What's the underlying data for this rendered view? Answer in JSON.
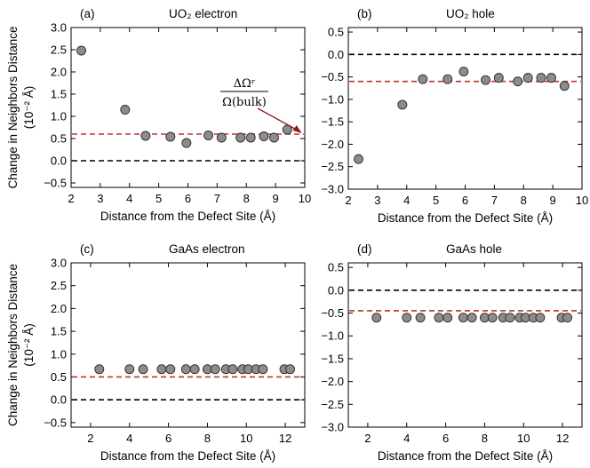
{
  "chart_data": [
    {
      "type": "scatter",
      "title_letter": "(a)",
      "title": "UO₂ electron",
      "xlabel": "Distance from the Defect Site (Å)",
      "ylabel": "Change in Neighbors Distance",
      "ylabel_unit": "(10⁻² Å)",
      "xlim": [
        2,
        10
      ],
      "ylim": [
        -0.6,
        3.0
      ],
      "xticks": [
        2,
        3,
        4,
        5,
        6,
        7,
        8,
        9,
        10
      ],
      "yticks": [
        -0.5,
        0.0,
        0.5,
        1.0,
        1.5,
        2.0,
        2.5,
        3.0
      ],
      "ytick_labels": [
        "−0.5",
        "0.0",
        "0.5",
        "1.0",
        "1.5",
        "2.0",
        "2.5",
        "3.0"
      ],
      "zero_line": 0.0,
      "reference_line": 0.6,
      "annotation": {
        "numerator": "ΔΩʳ",
        "denominator": "Ω(bulk)"
      },
      "points": {
        "x": [
          2.35,
          3.85,
          4.55,
          5.4,
          5.95,
          6.7,
          7.15,
          7.8,
          8.15,
          8.6,
          8.95,
          9.4
        ],
        "y": [
          2.48,
          1.15,
          0.56,
          0.54,
          0.4,
          0.57,
          0.52,
          0.52,
          0.52,
          0.55,
          0.52,
          0.7
        ]
      }
    },
    {
      "type": "scatter",
      "title_letter": "(b)",
      "title": "UO₂ hole",
      "xlabel": "Distance from the Defect Site (Å)",
      "ylabel": "",
      "xlim": [
        2,
        10
      ],
      "ylim": [
        -3.0,
        0.6
      ],
      "xticks": [
        2,
        3,
        4,
        5,
        6,
        7,
        8,
        9,
        10
      ],
      "yticks": [
        -3.0,
        -2.5,
        -2.0,
        -1.5,
        -1.0,
        -0.5,
        0.0,
        0.5
      ],
      "ytick_labels": [
        "−3.0",
        "−2.5",
        "−2.0",
        "−1.5",
        "−1.0",
        "−0.5",
        "0.0",
        "0.5"
      ],
      "zero_line": 0.0,
      "reference_line": -0.6,
      "points": {
        "x": [
          2.35,
          3.85,
          4.55,
          5.4,
          5.95,
          6.7,
          7.15,
          7.8,
          8.15,
          8.6,
          8.95,
          9.4
        ],
        "y": [
          -2.33,
          -1.12,
          -0.55,
          -0.55,
          -0.38,
          -0.57,
          -0.52,
          -0.6,
          -0.52,
          -0.52,
          -0.52,
          -0.7
        ]
      }
    },
    {
      "type": "scatter",
      "title_letter": "(c)",
      "title": "GaAs electron",
      "xlabel": "Distance from the Defect Site (Å)",
      "ylabel": "Change in Neighbors Distance",
      "ylabel_unit": "(10⁻² Å)",
      "xlim": [
        1,
        13
      ],
      "ylim": [
        -0.6,
        3.0
      ],
      "xticks": [
        2,
        4,
        6,
        8,
        10,
        12
      ],
      "yticks": [
        -0.5,
        0.0,
        0.5,
        1.0,
        1.5,
        2.0,
        2.5,
        3.0
      ],
      "ytick_labels": [
        "−0.5",
        "0.0",
        "0.5",
        "1.0",
        "1.5",
        "2.0",
        "2.5",
        "3.0"
      ],
      "zero_line": 0.0,
      "reference_line": 0.5,
      "points": {
        "x": [
          2.45,
          4.0,
          4.7,
          5.65,
          6.1,
          6.9,
          7.35,
          8.0,
          8.4,
          8.95,
          9.3,
          9.8,
          10.1,
          10.5,
          10.85,
          11.95,
          12.25
        ],
        "y": [
          0.67,
          0.67,
          0.67,
          0.67,
          0.67,
          0.67,
          0.67,
          0.67,
          0.67,
          0.67,
          0.67,
          0.67,
          0.67,
          0.67,
          0.67,
          0.67,
          0.67
        ]
      }
    },
    {
      "type": "scatter",
      "title_letter": "(d)",
      "title": "GaAs hole",
      "xlabel": "Distance from the Defect Site (Å)",
      "ylabel": "",
      "xlim": [
        1,
        13
      ],
      "ylim": [
        -3.0,
        0.6
      ],
      "xticks": [
        2,
        4,
        6,
        8,
        10,
        12
      ],
      "yticks": [
        -3.0,
        -2.5,
        -2.0,
        -1.5,
        -1.0,
        -0.5,
        0.0,
        0.5
      ],
      "ytick_labels": [
        "−3.0",
        "−2.5",
        "−2.0",
        "−1.5",
        "−1.0",
        "−0.5",
        "0.0",
        "0.5"
      ],
      "zero_line": 0.0,
      "reference_line": -0.45,
      "points": {
        "x": [
          2.45,
          4.0,
          4.7,
          5.65,
          6.1,
          6.9,
          7.35,
          8.0,
          8.4,
          8.95,
          9.3,
          9.8,
          10.1,
          10.5,
          10.85,
          11.95,
          12.25
        ],
        "y": [
          -0.6,
          -0.6,
          -0.6,
          -0.6,
          -0.6,
          -0.6,
          -0.6,
          -0.6,
          -0.6,
          -0.6,
          -0.6,
          -0.6,
          -0.6,
          -0.6,
          -0.6,
          -0.6,
          -0.6
        ]
      }
    }
  ],
  "colors": {
    "reference_line": "#c0322e",
    "zero_line": "#000000",
    "marker_fill": "#8c8c8c",
    "marker_edge": "#2a2a2a",
    "annotation_arrow": "#8b1a1a"
  }
}
